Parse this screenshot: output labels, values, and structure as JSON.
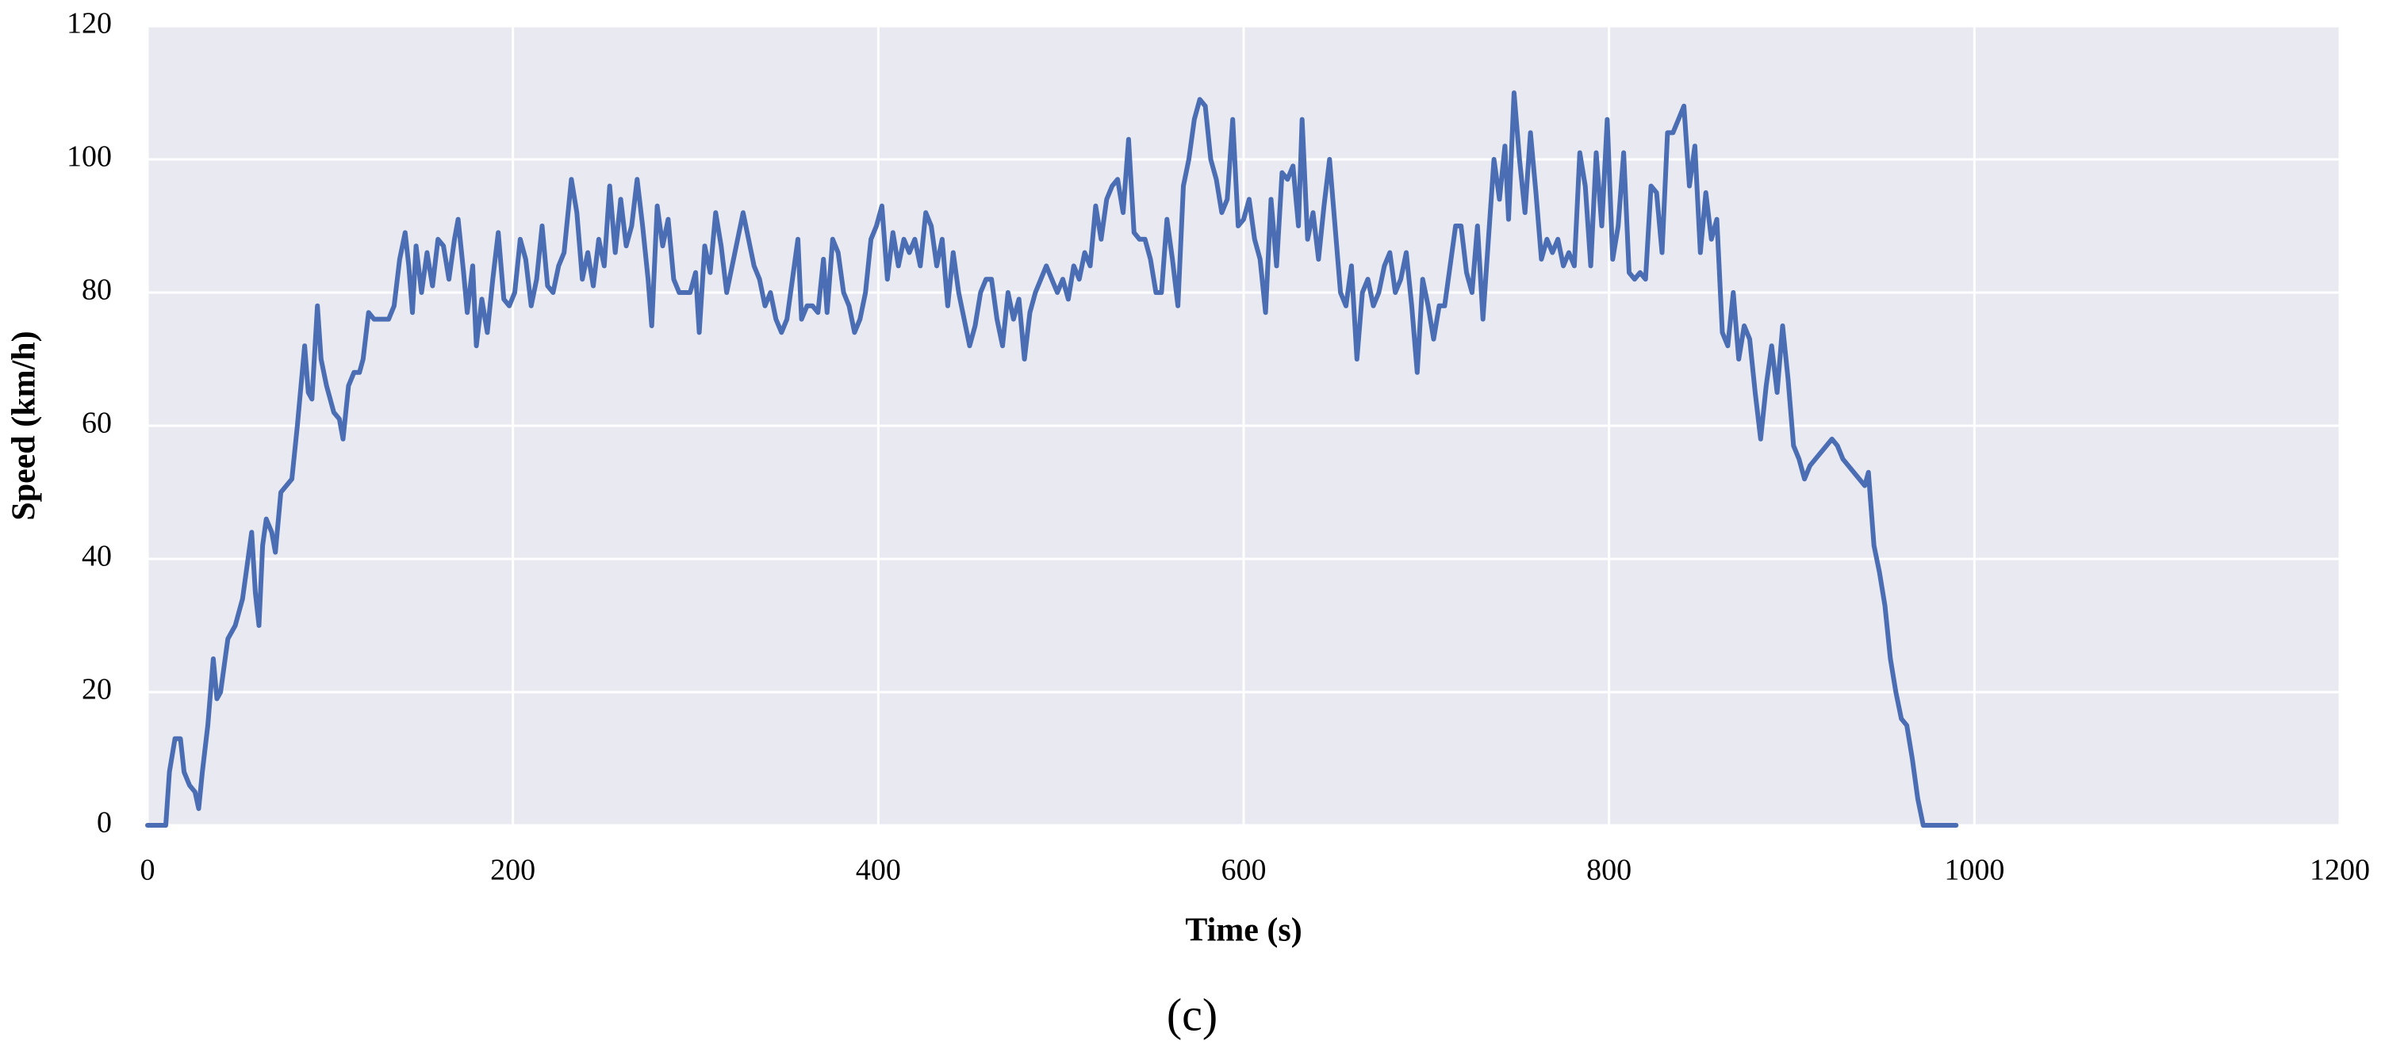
{
  "chart_data": {
    "type": "line",
    "caption": "(c)",
    "xlabel": "Time (s)",
    "ylabel": "Speed (km/h)",
    "xlim": [
      0,
      1200
    ],
    "xticks": [
      0,
      200,
      400,
      600,
      800,
      1000,
      1200
    ],
    "ylim": [
      0,
      120
    ],
    "yticks": [
      0,
      20,
      40,
      60,
      80,
      100,
      120
    ],
    "grid": true,
    "x": [
      0,
      10,
      12,
      15,
      18,
      20,
      23,
      26,
      28,
      30,
      33,
      36,
      38,
      40,
      44,
      48,
      52,
      55,
      57,
      59,
      61,
      63,
      65,
      68,
      70,
      73,
      76,
      79,
      82,
      86,
      88,
      90,
      93,
      95,
      98,
      102,
      105,
      107,
      110,
      113,
      116,
      118,
      121,
      124,
      128,
      132,
      135,
      138,
      141,
      143,
      145,
      147,
      150,
      153,
      156,
      159,
      162,
      165,
      168,
      170,
      173,
      175,
      178,
      180,
      183,
      186,
      189,
      192,
      195,
      198,
      201,
      204,
      207,
      210,
      213,
      216,
      219,
      222,
      225,
      228,
      232,
      235,
      238,
      241,
      244,
      247,
      250,
      253,
      256,
      259,
      262,
      265,
      268,
      271,
      274,
      276,
      279,
      282,
      285,
      288,
      291,
      294,
      297,
      300,
      302,
      305,
      308,
      311,
      314,
      317,
      320,
      323,
      326,
      329,
      332,
      335,
      338,
      341,
      344,
      347,
      350,
      353,
      356,
      358,
      361,
      364,
      367,
      370,
      372,
      375,
      378,
      381,
      384,
      387,
      390,
      393,
      396,
      399,
      402,
      405,
      408,
      411,
      414,
      417,
      420,
      423,
      426,
      429,
      432,
      435,
      438,
      441,
      444,
      447,
      450,
      453,
      456,
      459,
      462,
      465,
      468,
      471,
      474,
      477,
      480,
      483,
      486,
      489,
      492,
      495,
      498,
      501,
      504,
      507,
      510,
      513,
      516,
      519,
      522,
      525,
      528,
      531,
      534,
      537,
      540,
      543,
      546,
      549,
      552,
      555,
      558,
      561,
      564,
      567,
      570,
      573,
      576,
      579,
      582,
      585,
      588,
      591,
      594,
      597,
      600,
      603,
      606,
      609,
      612,
      615,
      618,
      621,
      624,
      627,
      630,
      632,
      635,
      638,
      641,
      644,
      647,
      650,
      653,
      656,
      659,
      662,
      665,
      668,
      671,
      674,
      677,
      680,
      683,
      686,
      689,
      692,
      695,
      698,
      701,
      704,
      707,
      710,
      713,
      716,
      719,
      722,
      725,
      728,
      731,
      734,
      737,
      740,
      743,
      745,
      748,
      751,
      754,
      757,
      760,
      763,
      766,
      769,
      772,
      775,
      778,
      781,
      784,
      787,
      790,
      793,
      796,
      799,
      802,
      805,
      808,
      811,
      814,
      817,
      820,
      823,
      826,
      829,
      832,
      835,
      838,
      841,
      844,
      847,
      850,
      853,
      856,
      859,
      862,
      865,
      868,
      871,
      874,
      877,
      880,
      883,
      886,
      889,
      892,
      895,
      898,
      901,
      904,
      907,
      910,
      913,
      916,
      919,
      922,
      925,
      928,
      931,
      934,
      937,
      940,
      942,
      945,
      948,
      951,
      954,
      957,
      960,
      963,
      966,
      969,
      972,
      990
    ],
    "series": [
      {
        "name": "Speed",
        "color": "#4a6db3",
        "values": [
          0,
          0,
          8,
          13,
          13,
          8,
          6,
          5,
          2.5,
          8,
          15,
          25,
          19,
          20,
          28,
          30,
          34,
          40,
          44,
          35,
          30,
          42,
          46,
          44,
          41,
          50,
          51,
          52,
          60,
          72,
          65,
          64,
          78,
          70,
          66,
          62,
          61,
          58,
          66,
          68,
          68,
          70,
          77,
          76,
          76,
          76,
          78,
          85,
          89,
          84,
          77,
          87,
          80,
          86,
          81,
          88,
          87,
          82,
          88,
          91,
          83,
          77,
          84,
          72,
          79,
          74,
          82,
          89,
          79,
          78,
          80,
          88,
          85,
          78,
          82,
          90,
          81,
          80,
          84,
          86,
          97,
          92,
          82,
          86,
          81,
          88,
          84,
          96,
          86,
          94,
          87,
          90,
          97,
          90,
          82,
          75,
          93,
          87,
          91,
          82,
          80,
          80,
          80,
          83,
          74,
          87,
          83,
          92,
          87,
          80,
          84,
          88,
          92,
          88,
          84,
          82,
          78,
          80,
          76,
          74,
          76,
          82,
          88,
          76,
          78,
          78,
          77,
          85,
          77,
          88,
          86,
          80,
          78,
          74,
          76,
          80,
          88,
          90,
          93,
          82,
          89,
          84,
          88,
          86,
          88,
          84,
          92,
          90,
          84,
          88,
          78,
          86,
          80,
          76,
          72,
          75,
          80,
          82,
          82,
          76,
          72,
          80,
          76,
          79,
          70,
          77,
          80,
          82,
          84,
          82,
          80,
          82,
          79,
          84,
          82,
          86,
          84,
          93,
          88,
          94,
          96,
          97,
          92,
          103,
          89,
          88,
          88,
          85,
          80,
          80,
          91,
          85,
          78,
          96,
          100,
          106,
          109,
          108,
          100,
          97,
          92,
          94,
          106,
          90,
          91,
          94,
          88,
          85,
          77,
          94,
          84,
          98,
          97,
          99,
          90,
          106,
          88,
          92,
          85,
          93,
          100,
          90,
          80,
          78,
          84,
          70,
          80,
          82,
          78,
          80,
          84,
          86,
          80,
          82,
          86,
          78,
          68,
          82,
          78,
          73,
          78,
          78,
          84,
          90,
          90,
          83,
          80,
          90,
          76,
          88,
          100,
          94,
          102,
          91,
          110,
          100,
          92,
          104,
          95,
          85,
          88,
          86,
          88,
          84,
          86,
          84,
          101,
          96,
          84,
          101,
          90,
          106,
          85,
          90,
          101,
          83,
          82,
          83,
          82,
          96,
          95,
          86,
          104,
          104,
          106,
          108,
          96,
          102,
          86,
          95,
          88,
          91,
          74,
          72,
          80,
          70,
          75,
          73,
          65,
          58,
          66,
          72,
          65,
          75,
          67,
          57,
          55,
          52,
          54,
          55,
          56,
          57,
          58,
          57,
          55,
          54,
          53,
          52,
          51,
          53,
          42,
          38,
          33,
          25,
          20,
          16,
          15,
          10,
          4,
          0,
          0
        ]
      }
    ]
  }
}
